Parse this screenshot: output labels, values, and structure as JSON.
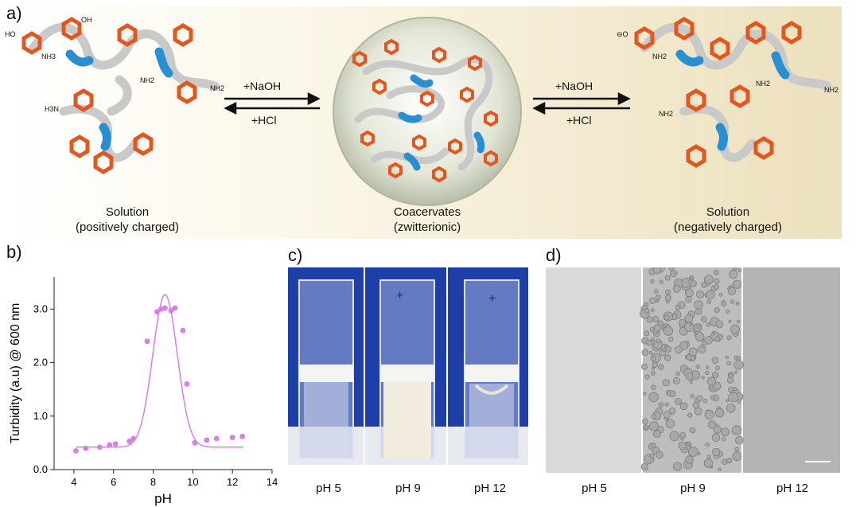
{
  "labels": {
    "a": "a)",
    "b": "b)",
    "c": "c)",
    "d": "d)"
  },
  "scheme": {
    "left_caption": [
      "Solution",
      "(positively charged)"
    ],
    "center_caption": [
      "Coacervates",
      "(zwitterionic)"
    ],
    "right_caption": [
      "Solution",
      "(negatively charged)"
    ],
    "arrow_top": "+NaOH",
    "arrow_bottom": "+HCl",
    "chem": {
      "oh": "OH",
      "ho": "HO",
      "nh2": "NH2",
      "nh3": "NH3",
      "h3n": "H3N",
      "ominus": "⊖O",
      "ominus_r": "O⊖",
      "plus": "⊕",
      "minus": "⊖"
    },
    "colors": {
      "chain": "#c9c9c9",
      "segment": "#2a8fd1",
      "ring": "#e2561f",
      "sphere": "#c8cdb8"
    }
  },
  "chart_data": {
    "type": "scatter",
    "xlabel": "pH",
    "ylabel": "Turbidity (a.u) @ 600 nm",
    "xlim": [
      3,
      14
    ],
    "ylim": [
      0,
      3.6
    ],
    "xticks": [
      4,
      6,
      8,
      10,
      12,
      14
    ],
    "yticks": [
      0.0,
      1.0,
      2.0,
      3.0
    ],
    "xtick_labels": [
      "4",
      "6",
      "8",
      "10",
      "12",
      "14"
    ],
    "ytick_labels": [
      "0.0",
      "1.0",
      "2.0",
      "3.0"
    ],
    "series": [
      {
        "type": "scatter",
        "color": "#d77fe6",
        "x": [
          4.1,
          4.6,
          5.3,
          5.8,
          6.1,
          6.8,
          7.0,
          7.7,
          8.2,
          8.4,
          8.6,
          8.9,
          9.1,
          9.5,
          9.7,
          10.1,
          10.7,
          11.2,
          12.0,
          12.5
        ],
        "y": [
          0.35,
          0.4,
          0.42,
          0.46,
          0.48,
          0.53,
          0.58,
          2.4,
          2.95,
          3.0,
          3.02,
          2.97,
          3.02,
          2.6,
          1.6,
          0.5,
          0.55,
          0.58,
          0.6,
          0.62
        ]
      },
      {
        "type": "fit",
        "color": "#d77fe6",
        "baseline": 0.42,
        "peak_x": 8.6,
        "amplitude": 2.85,
        "sigma": 0.62
      }
    ]
  },
  "photo_captions": [
    "pH  5",
    "pH  9",
    "pH  12"
  ],
  "micro_captions": [
    "pH  5",
    "pH  9",
    "pH  12"
  ]
}
